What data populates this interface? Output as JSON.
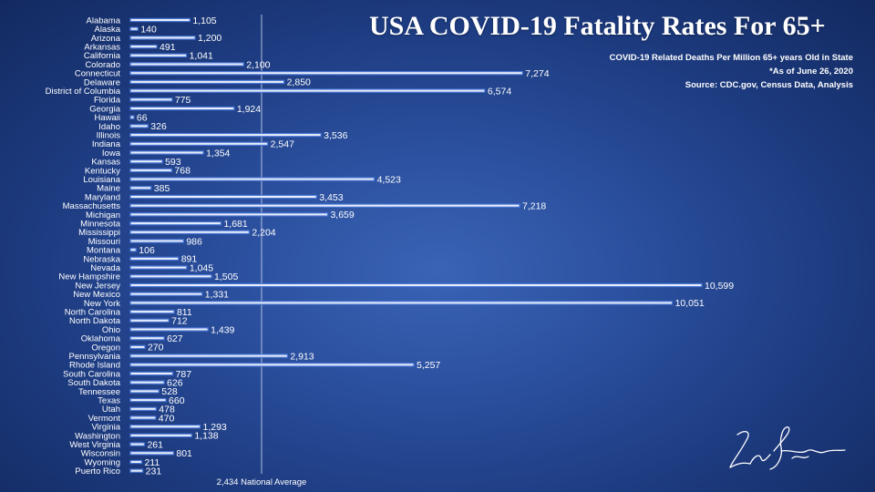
{
  "chart_data": {
    "type": "bar",
    "orientation": "horizontal",
    "title": "USA COVID-19 Fatality Rates For 65+",
    "subtitle_lines": [
      "COVID-19 Related Deaths Per Million 65+ years Old in State",
      "*As of  June 26, 2020",
      "Source: CDC.gov, Census Data, Analysis"
    ],
    "categories": [
      "Alabama",
      "Alaska",
      "Arizona",
      "Arkansas",
      "California",
      "Colorado",
      "Connecticut",
      "Delaware",
      "District of Columbia",
      "Florida",
      "Georgia",
      "Hawaii",
      "Idaho",
      "Illinois",
      "Indiana",
      "Iowa",
      "Kansas",
      "Kentucky",
      "Louisiana",
      "Maine",
      "Maryland",
      "Massachusetts",
      "Michigan",
      "Minnesota",
      "Mississippi",
      "Missouri",
      "Montana",
      "Nebraska",
      "Nevada",
      "New Hampshire",
      "New Jersey",
      "New Mexico",
      "New York",
      "North Carolina",
      "North Dakota",
      "Ohio",
      "Oklahoma",
      "Oregon",
      "Pennsylvania",
      "Rhode Island",
      "South Carolina",
      "South Dakota",
      "Tennessee",
      "Texas",
      "Utah",
      "Vermont",
      "Virginia",
      "Washington",
      "West Virginia",
      "Wisconsin",
      "Wyoming",
      "Puerto Rico"
    ],
    "values": [
      1105,
      140,
      1200,
      491,
      1041,
      2100,
      7274,
      2850,
      6574,
      775,
      1924,
      66,
      326,
      3536,
      2547,
      1354,
      593,
      768,
      4523,
      385,
      3453,
      7218,
      3659,
      1681,
      2204,
      986,
      106,
      891,
      1045,
      1505,
      10599,
      1331,
      10051,
      811,
      712,
      1439,
      627,
      270,
      2913,
      5257,
      787,
      626,
      528,
      660,
      478,
      470,
      1293,
      1138,
      261,
      801,
      211,
      231
    ],
    "value_labels": [
      "1,105",
      "140",
      "1,200",
      "491",
      "1,041",
      "2,100",
      "7,274",
      "2,850",
      "6,574",
      "775",
      "1,924",
      "66",
      "326",
      "3,536",
      "2,547",
      "1,354",
      "593",
      "768",
      "4,523",
      "385",
      "3,453",
      "7,218",
      "3,659",
      "1,681",
      "2,204",
      "986",
      "106",
      "891",
      "1,045",
      "1,505",
      "10,599",
      "1,331",
      "10,051",
      "811",
      "712",
      "1,439",
      "627",
      "270",
      "2,913",
      "5,257",
      "787",
      "626",
      "528",
      "660",
      "478",
      "470",
      "1,293",
      "1,138",
      "261",
      "801",
      "211",
      "231"
    ],
    "reference_line": {
      "value": 2434,
      "label": "2,434 National Average"
    },
    "xlim": [
      0,
      11000
    ],
    "grid": false,
    "legend": "none",
    "colors": {
      "bar_fill": "#e9eef8",
      "bar_edge": "#4a78d8",
      "background": "#2a4e9c"
    }
  },
  "signature": {
    "text": "Leon Shirinsky",
    "kind": "handwritten-signature-image"
  }
}
